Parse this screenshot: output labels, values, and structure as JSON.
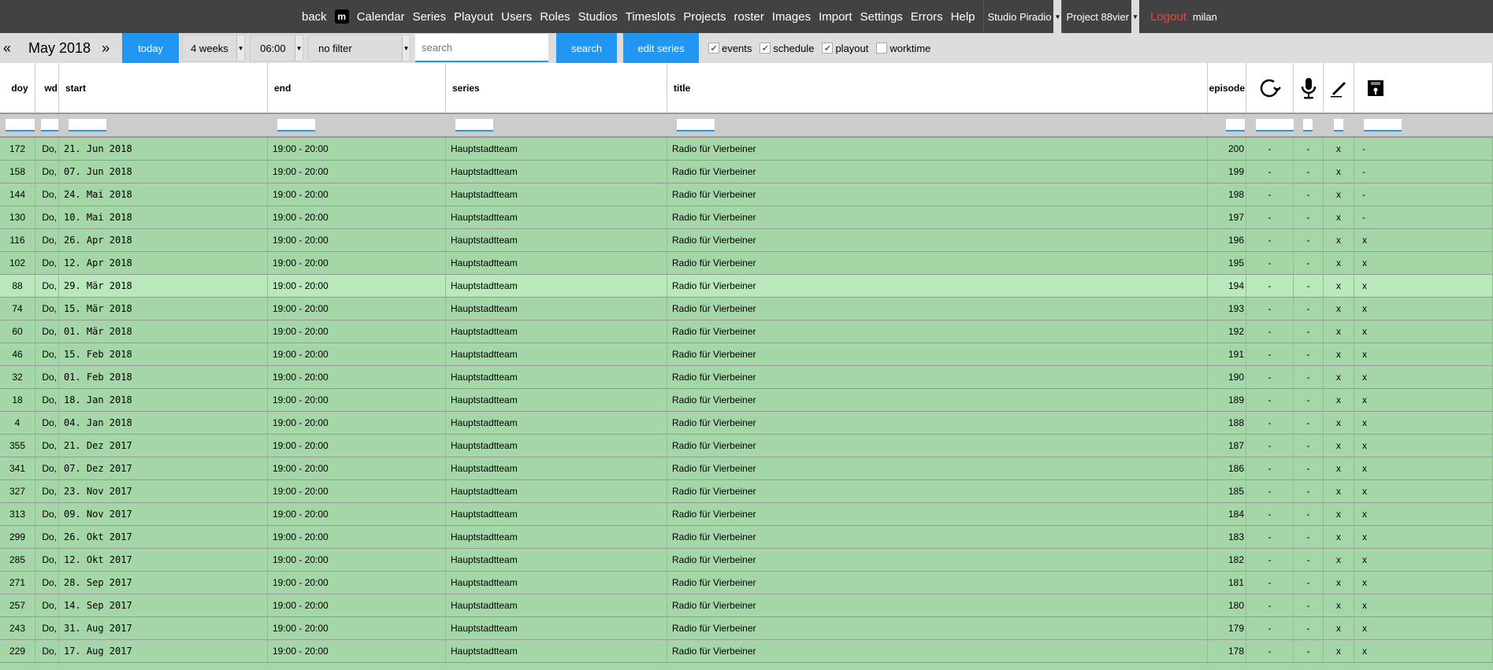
{
  "nav": {
    "back": "back",
    "logo": "m",
    "items": [
      "Calendar",
      "Series",
      "Playout",
      "Users",
      "Roles",
      "Studios",
      "Timeslots",
      "Projects",
      "roster",
      "Images",
      "Import",
      "Settings",
      "Errors",
      "Help"
    ],
    "studio": "Studio Piradio",
    "project": "Project 88vier",
    "logout": "Logout",
    "user": "milan",
    "logout_color": "#f44336"
  },
  "toolbar": {
    "prev": "«",
    "month": "May 2018",
    "next": "»",
    "today": "today",
    "range": "4 weeks",
    "time": "06:00",
    "filter": "no filter",
    "search_placeholder": "search",
    "search": "search",
    "edit_series": "edit series",
    "checkboxes": [
      {
        "label": "events",
        "checked": true
      },
      {
        "label": "schedule",
        "checked": true
      },
      {
        "label": "playout",
        "checked": true
      },
      {
        "label": "worktime",
        "checked": false
      }
    ],
    "accent": "#2196f3"
  },
  "columns": {
    "doy": "doy",
    "wd": "wd",
    "start": "start",
    "end": "end",
    "series": "series",
    "title": "title",
    "episode": "episode",
    "icons": [
      "rerun-icon",
      "microphone-icon",
      "pencil-icon",
      "floppy-disk-icon"
    ]
  },
  "rows": [
    [
      "172",
      "Do,",
      "21. Jun 2018",
      "19:00 - 20:00",
      "Hauptstadtteam",
      "Radio für Vierbeiner",
      "200",
      "-",
      "-",
      "x",
      "-"
    ],
    [
      "158",
      "Do,",
      "07. Jun 2018",
      "19:00 - 20:00",
      "Hauptstadtteam",
      "Radio für Vierbeiner",
      "199",
      "-",
      "-",
      "x",
      "-"
    ],
    [
      "144",
      "Do,",
      "24. Mai 2018",
      "19:00 - 20:00",
      "Hauptstadtteam",
      "Radio für Vierbeiner",
      "198",
      "-",
      "-",
      "x",
      "-"
    ],
    [
      "130",
      "Do,",
      "10. Mai 2018",
      "19:00 - 20:00",
      "Hauptstadtteam",
      "Radio für Vierbeiner",
      "197",
      "-",
      "-",
      "x",
      "-"
    ],
    [
      "116",
      "Do,",
      "26. Apr 2018",
      "19:00 - 20:00",
      "Hauptstadtteam",
      "Radio für Vierbeiner",
      "196",
      "-",
      "-",
      "x",
      "x"
    ],
    [
      "102",
      "Do,",
      "12. Apr 2018",
      "19:00 - 20:00",
      "Hauptstadtteam",
      "Radio für Vierbeiner",
      "195",
      "-",
      "-",
      "x",
      "x"
    ],
    [
      "88",
      "Do,",
      "29. Mär 2018",
      "19:00 - 20:00",
      "Hauptstadtteam",
      "Radio für Vierbeiner",
      "194",
      "-",
      "-",
      "x",
      "x"
    ],
    [
      "74",
      "Do,",
      "15. Mär 2018",
      "19:00 - 20:00",
      "Hauptstadtteam",
      "Radio für Vierbeiner",
      "193",
      "-",
      "-",
      "x",
      "x"
    ],
    [
      "60",
      "Do,",
      "01. Mär 2018",
      "19:00 - 20:00",
      "Hauptstadtteam",
      "Radio für Vierbeiner",
      "192",
      "-",
      "-",
      "x",
      "x"
    ],
    [
      "46",
      "Do,",
      "15. Feb 2018",
      "19:00 - 20:00",
      "Hauptstadtteam",
      "Radio für Vierbeiner",
      "191",
      "-",
      "-",
      "x",
      "x"
    ],
    [
      "32",
      "Do,",
      "01. Feb 2018",
      "19:00 - 20:00",
      "Hauptstadtteam",
      "Radio für Vierbeiner",
      "190",
      "-",
      "-",
      "x",
      "x"
    ],
    [
      "18",
      "Do,",
      "18. Jan 2018",
      "19:00 - 20:00",
      "Hauptstadtteam",
      "Radio für Vierbeiner",
      "189",
      "-",
      "-",
      "x",
      "x"
    ],
    [
      "4",
      "Do,",
      "04. Jan 2018",
      "19:00 - 20:00",
      "Hauptstadtteam",
      "Radio für Vierbeiner",
      "188",
      "-",
      "-",
      "x",
      "x"
    ],
    [
      "355",
      "Do,",
      "21. Dez 2017",
      "19:00 - 20:00",
      "Hauptstadtteam",
      "Radio für Vierbeiner",
      "187",
      "-",
      "-",
      "x",
      "x"
    ],
    [
      "341",
      "Do,",
      "07. Dez 2017",
      "19:00 - 20:00",
      "Hauptstadtteam",
      "Radio für Vierbeiner",
      "186",
      "-",
      "-",
      "x",
      "x"
    ],
    [
      "327",
      "Do,",
      "23. Nov 2017",
      "19:00 - 20:00",
      "Hauptstadtteam",
      "Radio für Vierbeiner",
      "185",
      "-",
      "-",
      "x",
      "x"
    ],
    [
      "313",
      "Do,",
      "09. Nov 2017",
      "19:00 - 20:00",
      "Hauptstadtteam",
      "Radio für Vierbeiner",
      "184",
      "-",
      "-",
      "x",
      "x"
    ],
    [
      "299",
      "Do,",
      "26. Okt 2017",
      "19:00 - 20:00",
      "Hauptstadtteam",
      "Radio für Vierbeiner",
      "183",
      "-",
      "-",
      "x",
      "x"
    ],
    [
      "285",
      "Do,",
      "12. Okt 2017",
      "19:00 - 20:00",
      "Hauptstadtteam",
      "Radio für Vierbeiner",
      "182",
      "-",
      "-",
      "x",
      "x"
    ],
    [
      "271",
      "Do,",
      "28. Sep 2017",
      "19:00 - 20:00",
      "Hauptstadtteam",
      "Radio für Vierbeiner",
      "181",
      "-",
      "-",
      "x",
      "x"
    ],
    [
      "257",
      "Do,",
      "14. Sep 2017",
      "19:00 - 20:00",
      "Hauptstadtteam",
      "Radio für Vierbeiner",
      "180",
      "-",
      "-",
      "x",
      "x"
    ],
    [
      "243",
      "Do,",
      "31. Aug 2017",
      "19:00 - 20:00",
      "Hauptstadtteam",
      "Radio für Vierbeiner",
      "179",
      "-",
      "-",
      "x",
      "x"
    ],
    [
      "229",
      "Do,",
      "17. Aug 2017",
      "19:00 - 20:00",
      "Hauptstadtteam",
      "Radio für Vierbeiner",
      "178",
      "-",
      "-",
      "x",
      "x"
    ]
  ],
  "highlighted_row": 6,
  "row_color": "#a5d6a7",
  "highlight_color": "#b9e9bb"
}
